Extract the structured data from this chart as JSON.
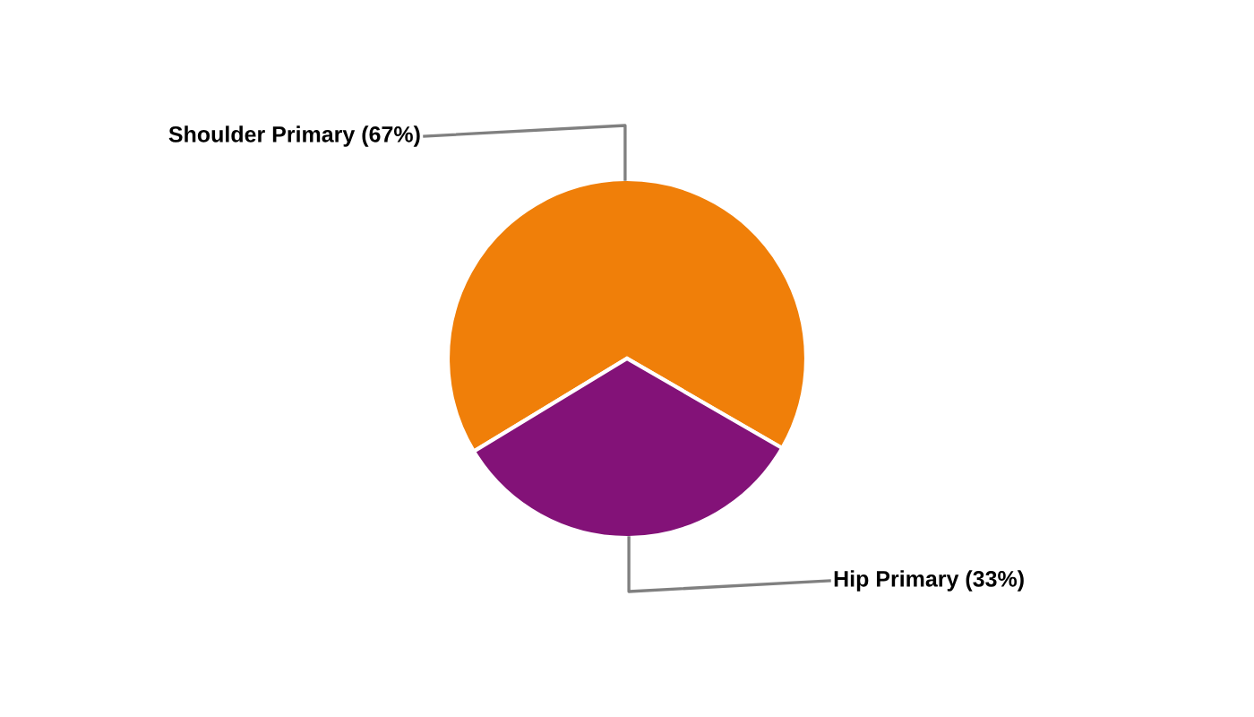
{
  "chart_data": {
    "type": "pie",
    "categories": [
      "Shoulder Primary",
      "Hip Primary"
    ],
    "values": [
      67,
      33
    ],
    "value_labels": [
      "(67%)",
      "(33%)"
    ],
    "colors": [
      "#f07f09",
      "#831278"
    ]
  }
}
